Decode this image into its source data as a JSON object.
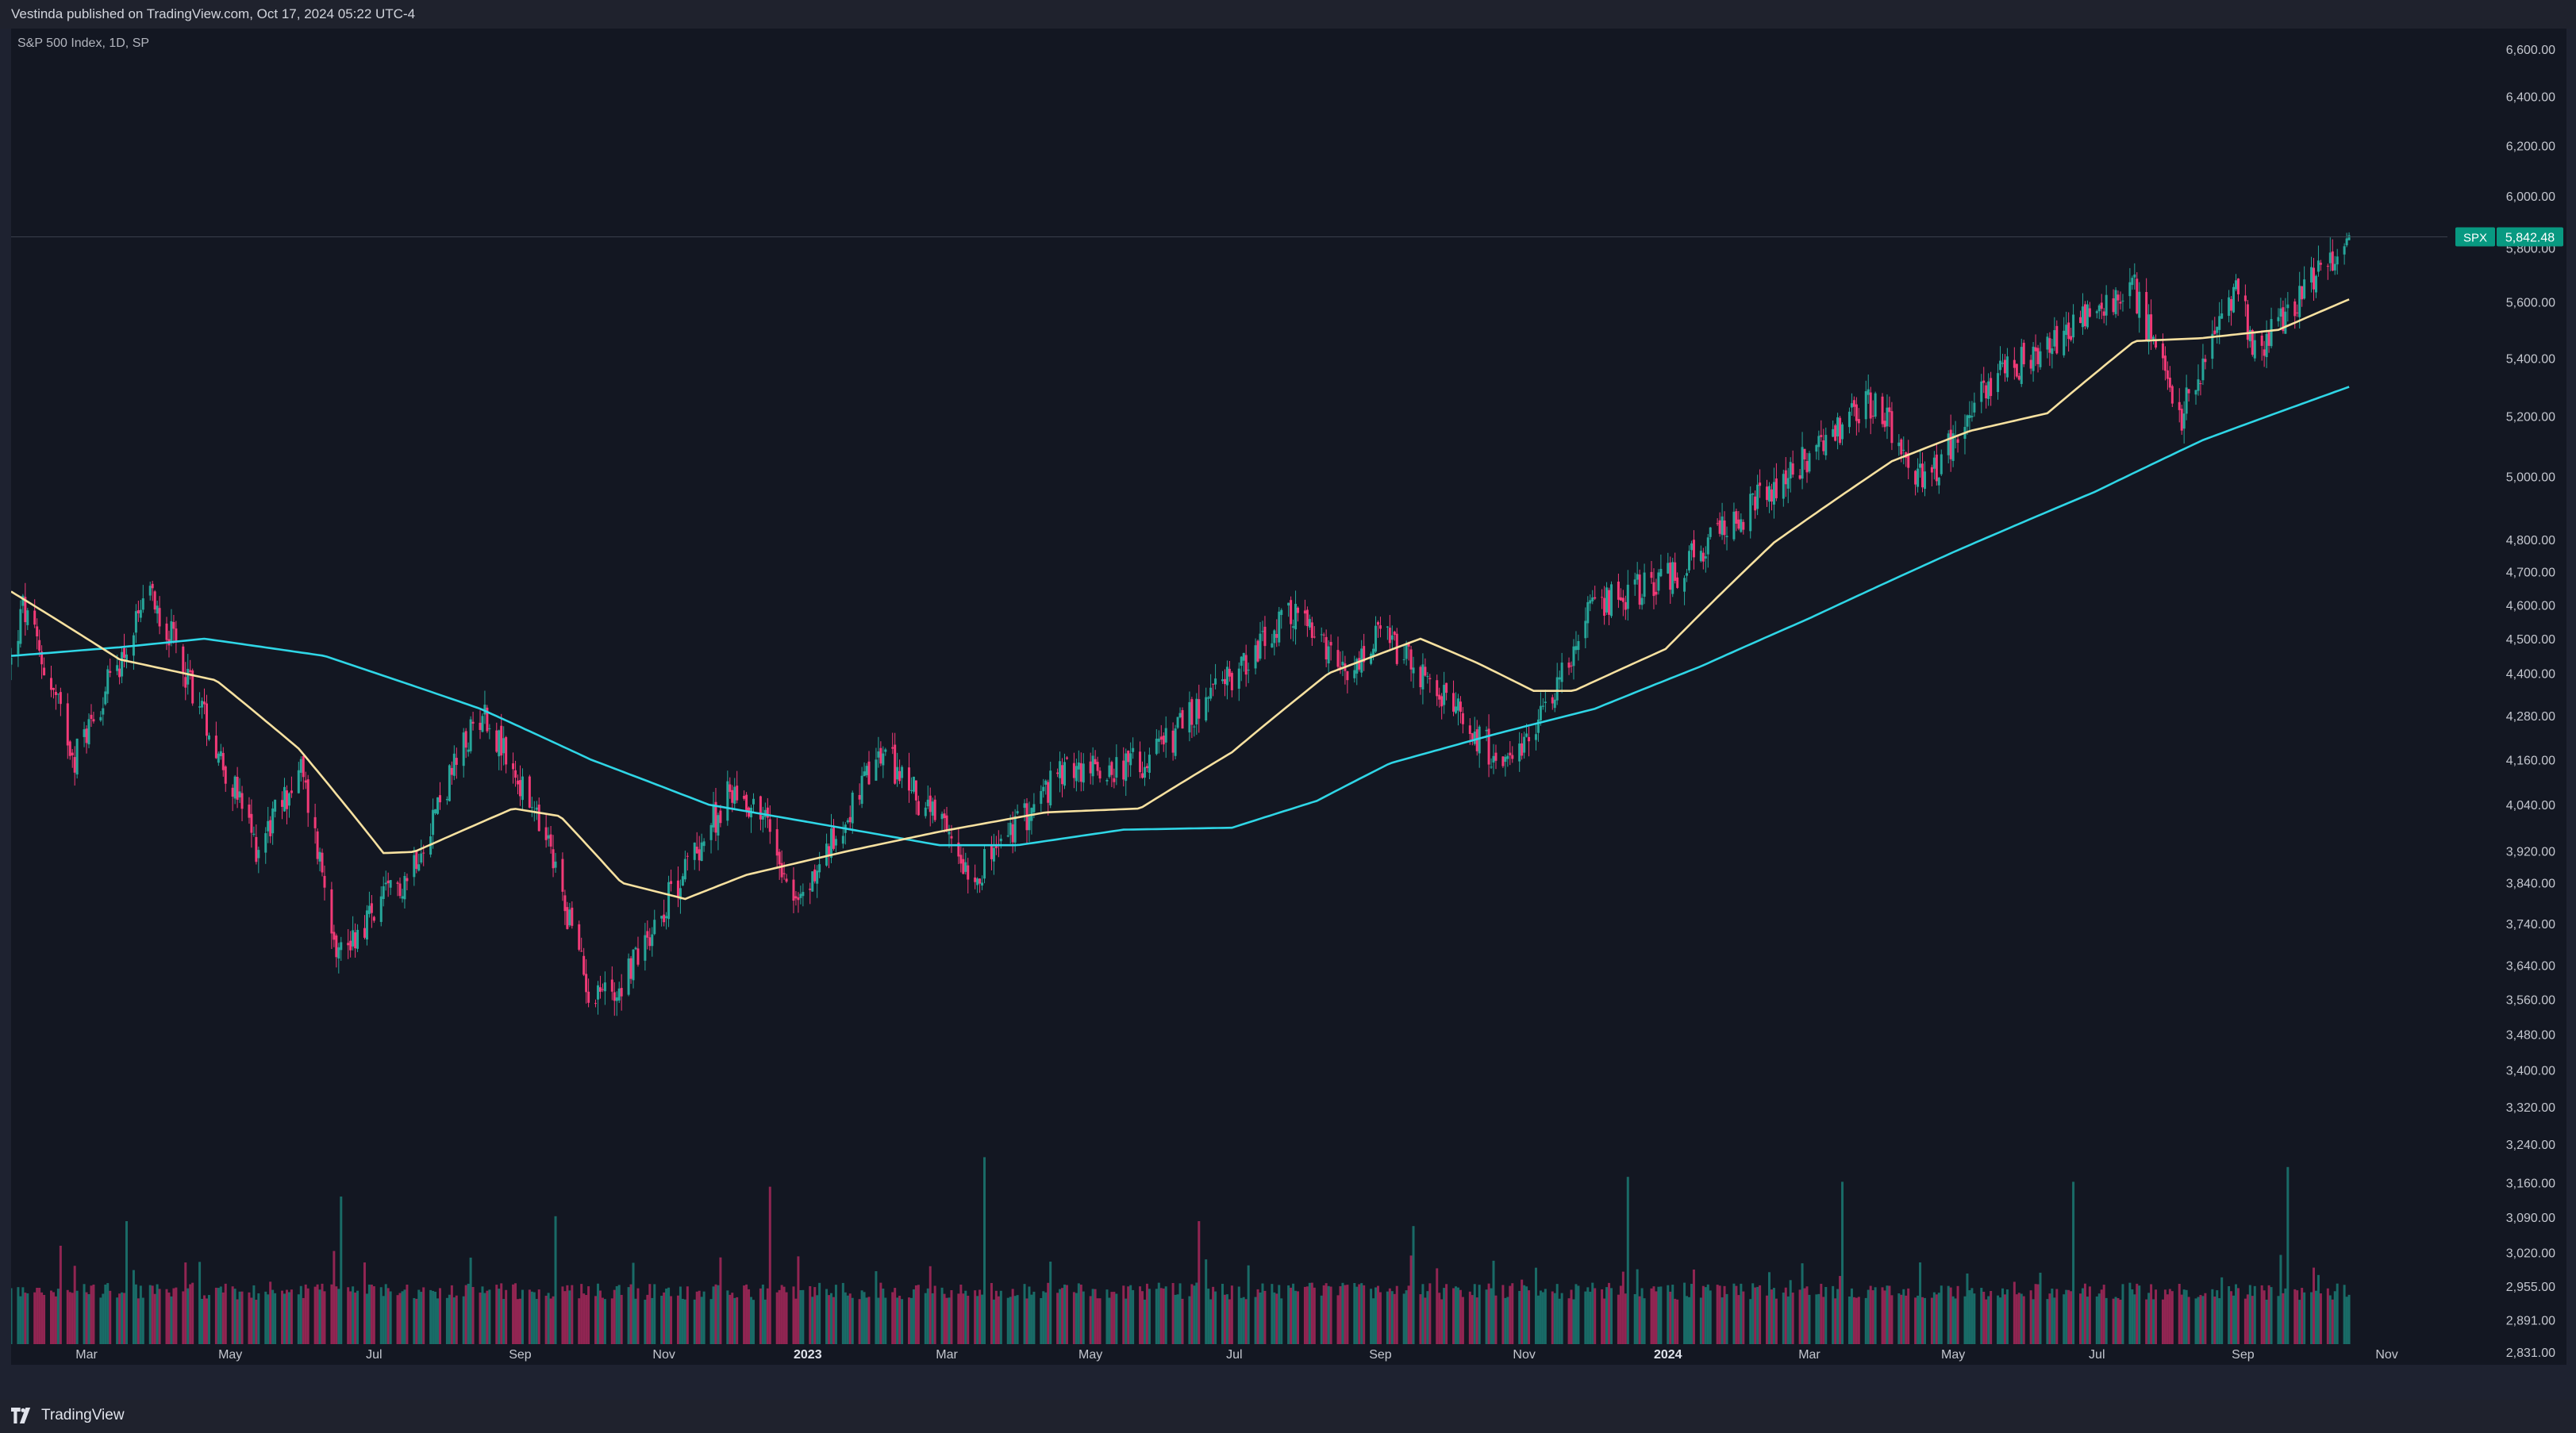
{
  "header": {
    "published_text": "Vestinda published on TradingView.com, Oct 17, 2024 05:22 UTC-4"
  },
  "symbol": {
    "description": "S&P 500 Index, 1D, SP",
    "ticker": "SPX",
    "last_price": "5,842.48"
  },
  "branding": {
    "logo_text": "TradingView"
  },
  "colors": {
    "background": "#131722",
    "up": "#26a69a",
    "down": "#f23a77",
    "ma_fast": "#f7e1a0",
    "ma_slow": "#2fd6e6",
    "price_tag": "#089981"
  },
  "chart_data": {
    "type": "candlestick",
    "scale": "log",
    "y_axis_labels": [
      "6,600.00",
      "6,400.00",
      "6,200.00",
      "6,000.00",
      "5,800.00",
      "5,600.00",
      "5,400.00",
      "5,200.00",
      "5,000.00",
      "4,800.00",
      "4,700.00",
      "4,600.00",
      "4,500.00",
      "4,400.00",
      "4,280.00",
      "4,160.00",
      "4,040.00",
      "3,920.00",
      "3,840.00",
      "3,740.00",
      "3,640.00",
      "3,560.00",
      "3,480.00",
      "3,400.00",
      "3,320.00",
      "3,240.00",
      "3,160.00",
      "3,090.00",
      "3,020.00",
      "2,955.00",
      "2,891.00",
      "2,831.00"
    ],
    "x_axis_labels": [
      {
        "label": "Mar",
        "date": "2022-03-01"
      },
      {
        "label": "May",
        "date": "2022-05-01"
      },
      {
        "label": "Jul",
        "date": "2022-07-01"
      },
      {
        "label": "Sep",
        "date": "2022-09-01"
      },
      {
        "label": "Nov",
        "date": "2022-11-01"
      },
      {
        "label": "2023",
        "date": "2023-01-01",
        "bold": true
      },
      {
        "label": "Mar",
        "date": "2023-03-01"
      },
      {
        "label": "May",
        "date": "2023-05-01"
      },
      {
        "label": "Jul",
        "date": "2023-07-01"
      },
      {
        "label": "Sep",
        "date": "2023-09-01"
      },
      {
        "label": "Nov",
        "date": "2023-11-01"
      },
      {
        "label": "2024",
        "date": "2024-01-01",
        "bold": true
      },
      {
        "label": "Mar",
        "date": "2024-03-01"
      },
      {
        "label": "May",
        "date": "2024-05-01"
      },
      {
        "label": "Jul",
        "date": "2024-07-01"
      },
      {
        "label": "Sep",
        "date": "2024-09-01"
      },
      {
        "label": "Nov",
        "date": "2024-11-01"
      }
    ],
    "x_range": [
      "2022-01-28",
      "2024-11-20"
    ],
    "price_anchors": [
      {
        "date": "2022-01-28",
        "close": 4430
      },
      {
        "date": "2022-02-02",
        "close": 4590
      },
      {
        "date": "2022-02-24",
        "close": 4170
      },
      {
        "date": "2022-03-29",
        "close": 4630
      },
      {
        "date": "2022-05-12",
        "close": 3930
      },
      {
        "date": "2022-05-31",
        "close": 4130
      },
      {
        "date": "2022-06-16",
        "close": 3670
      },
      {
        "date": "2022-07-15",
        "close": 3860
      },
      {
        "date": "2022-08-16",
        "close": 4300
      },
      {
        "date": "2022-09-13",
        "close": 3930
      },
      {
        "date": "2022-09-30",
        "close": 3585
      },
      {
        "date": "2022-10-12",
        "close": 3580
      },
      {
        "date": "2022-11-30",
        "close": 4080
      },
      {
        "date": "2022-12-13",
        "close": 4020
      },
      {
        "date": "2022-12-28",
        "close": 3785
      },
      {
        "date": "2023-02-02",
        "close": 4180
      },
      {
        "date": "2023-03-13",
        "close": 3860
      },
      {
        "date": "2023-04-20",
        "close": 4130
      },
      {
        "date": "2023-05-25",
        "close": 4150
      },
      {
        "date": "2023-07-27",
        "close": 4580
      },
      {
        "date": "2023-08-18",
        "close": 4370
      },
      {
        "date": "2023-09-01",
        "close": 4515
      },
      {
        "date": "2023-10-27",
        "close": 4120
      },
      {
        "date": "2023-12-01",
        "close": 4600
      },
      {
        "date": "2024-01-04",
        "close": 4690
      },
      {
        "date": "2024-03-28",
        "close": 5250
      },
      {
        "date": "2024-04-19",
        "close": 4970
      },
      {
        "date": "2024-05-15",
        "close": 5300
      },
      {
        "date": "2024-07-16",
        "close": 5665
      },
      {
        "date": "2024-08-05",
        "close": 5190
      },
      {
        "date": "2024-08-30",
        "close": 5650
      },
      {
        "date": "2024-09-06",
        "close": 5410
      },
      {
        "date": "2024-10-16",
        "close": 5842.48
      }
    ],
    "ma_fast_anchors": [
      {
        "date": "2022-01-28",
        "value": 4640
      },
      {
        "date": "2022-03-15",
        "value": 4440
      },
      {
        "date": "2022-04-25",
        "value": 4380
      },
      {
        "date": "2022-05-30",
        "value": 4190
      },
      {
        "date": "2022-07-05",
        "value": 3915
      },
      {
        "date": "2022-07-18",
        "value": 3918
      },
      {
        "date": "2022-08-29",
        "value": 4030
      },
      {
        "date": "2022-09-18",
        "value": 4010
      },
      {
        "date": "2022-10-14",
        "value": 3840
      },
      {
        "date": "2022-11-10",
        "value": 3800
      },
      {
        "date": "2022-12-06",
        "value": 3860
      },
      {
        "date": "2023-01-18",
        "value": 3920
      },
      {
        "date": "2023-02-26",
        "value": 3970
      },
      {
        "date": "2023-04-12",
        "value": 4020
      },
      {
        "date": "2023-05-22",
        "value": 4030
      },
      {
        "date": "2023-06-30",
        "value": 4180
      },
      {
        "date": "2023-08-10",
        "value": 4400
      },
      {
        "date": "2023-09-18",
        "value": 4500
      },
      {
        "date": "2023-10-12",
        "value": 4430
      },
      {
        "date": "2023-11-05",
        "value": 4350
      },
      {
        "date": "2023-11-22",
        "value": 4350
      },
      {
        "date": "2023-12-31",
        "value": 4470
      },
      {
        "date": "2024-02-15",
        "value": 4790
      },
      {
        "date": "2024-04-05",
        "value": 5050
      },
      {
        "date": "2024-05-08",
        "value": 5150
      },
      {
        "date": "2024-06-10",
        "value": 5210
      },
      {
        "date": "2024-07-17",
        "value": 5460
      },
      {
        "date": "2024-08-14",
        "value": 5470
      },
      {
        "date": "2024-09-16",
        "value": 5500
      },
      {
        "date": "2024-10-16",
        "value": 5610
      }
    ],
    "ma_slow_anchors": [
      {
        "date": "2022-01-28",
        "value": 4450
      },
      {
        "date": "2022-03-15",
        "value": 4475
      },
      {
        "date": "2022-04-20",
        "value": 4500
      },
      {
        "date": "2022-06-10",
        "value": 4450
      },
      {
        "date": "2022-08-15",
        "value": 4300
      },
      {
        "date": "2022-10-01",
        "value": 4160
      },
      {
        "date": "2022-11-20",
        "value": 4040
      },
      {
        "date": "2023-01-15",
        "value": 3980
      },
      {
        "date": "2023-02-26",
        "value": 3935
      },
      {
        "date": "2023-03-31",
        "value": 3935
      },
      {
        "date": "2023-05-15",
        "value": 3975
      },
      {
        "date": "2023-06-30",
        "value": 3980
      },
      {
        "date": "2023-08-05",
        "value": 4050
      },
      {
        "date": "2023-09-05",
        "value": 4150
      },
      {
        "date": "2023-10-20",
        "value": 4230
      },
      {
        "date": "2023-12-01",
        "value": 4300
      },
      {
        "date": "2024-01-15",
        "value": 4420
      },
      {
        "date": "2024-03-01",
        "value": 4560
      },
      {
        "date": "2024-05-01",
        "value": 4760
      },
      {
        "date": "2024-06-30",
        "value": 4950
      },
      {
        "date": "2024-08-15",
        "value": 5120
      },
      {
        "date": "2024-10-16",
        "value": 5300
      }
    ],
    "volume_spikes": [
      {
        "date": "2022-02-18",
        "value": 2.0
      },
      {
        "date": "2022-03-18",
        "value": 2.5
      },
      {
        "date": "2022-06-17",
        "value": 3.0
      },
      {
        "date": "2022-09-16",
        "value": 2.6
      },
      {
        "date": "2022-12-16",
        "value": 3.2
      },
      {
        "date": "2023-03-17",
        "value": 3.8
      },
      {
        "date": "2023-06-16",
        "value": 2.5
      },
      {
        "date": "2023-09-15",
        "value": 2.4
      },
      {
        "date": "2023-12-15",
        "value": 3.4
      },
      {
        "date": "2024-03-15",
        "value": 3.3
      },
      {
        "date": "2024-06-21",
        "value": 3.3
      },
      {
        "date": "2024-09-20",
        "value": 3.6
      }
    ],
    "grid": false,
    "legend": "top-left"
  }
}
